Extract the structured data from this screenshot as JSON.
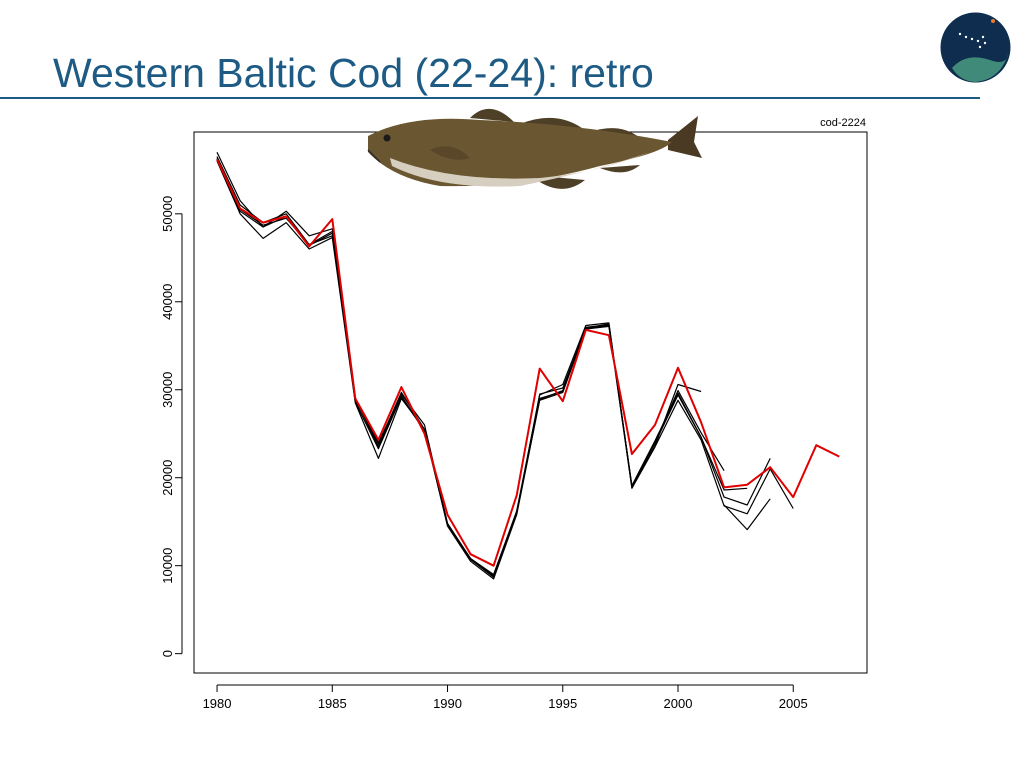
{
  "slide": {
    "title": "Western Baltic Cod (22-24): retro"
  },
  "chart_data": {
    "type": "line",
    "tag": "cod-2224",
    "title": "",
    "xlabel": "",
    "ylabel": "",
    "xlim": [
      1979,
      2008.2
    ],
    "ylim": [
      -2200,
      59300
    ],
    "x_ticks": [
      1980,
      1985,
      1990,
      1995,
      2000,
      2005
    ],
    "y_ticks": [
      0,
      10000,
      20000,
      30000,
      40000,
      50000
    ],
    "grid": false,
    "legend": "none",
    "series": [
      {
        "color": "#000000",
        "x": [
          1980,
          1981,
          1982,
          1983,
          1984,
          1985,
          1986,
          1987,
          1988,
          1989,
          1990,
          1991,
          1992,
          1993,
          1994,
          1995,
          1996,
          1997,
          1998,
          1999,
          2000,
          2001
        ],
        "y": [
          57000,
          51500,
          48500,
          50300,
          47500,
          48300,
          29000,
          23500,
          29500,
          26000,
          14800,
          10700,
          8700,
          16200,
          29400,
          30600,
          37300,
          37600,
          18900,
          23600,
          30600,
          29800
        ]
      },
      {
        "color": "#000000",
        "x": [
          1980,
          1981,
          1982,
          1983,
          1984,
          1985,
          1986,
          1987,
          1988,
          1989,
          1990,
          1991,
          1992,
          1993,
          1994,
          1995,
          1996,
          1997,
          1998,
          1999,
          2000,
          2001,
          2002
        ],
        "y": [
          56500,
          51000,
          49000,
          50000,
          46500,
          48000,
          29000,
          23800,
          29700,
          25500,
          14800,
          10800,
          8900,
          16000,
          29500,
          30200,
          37000,
          37500,
          19000,
          24000,
          29900,
          25100,
          20800
        ]
      },
      {
        "color": "#000000",
        "x": [
          1980,
          1981,
          1982,
          1983,
          1984,
          1985,
          1986,
          1987,
          1988,
          1989,
          1990,
          1991,
          1992,
          1993,
          1994,
          1995,
          1996,
          1997,
          1998,
          1999,
          2000,
          2001,
          2002,
          2003
        ],
        "y": [
          56300,
          50500,
          48700,
          49500,
          46500,
          47500,
          28800,
          24000,
          29300,
          25400,
          14600,
          10800,
          9000,
          16200,
          29000,
          29800,
          37100,
          37400,
          19100,
          24200,
          29600,
          24600,
          18600,
          18800
        ]
      },
      {
        "color": "#000000",
        "x": [
          1980,
          1981,
          1982,
          1983,
          1984,
          1985,
          1986,
          1987,
          1988,
          1989,
          1990,
          1991,
          1992,
          1993,
          1994,
          1995,
          1996,
          1997,
          1998,
          1999,
          2000,
          2001,
          2002,
          2003,
          2004
        ],
        "y": [
          56200,
          50300,
          48500,
          49700,
          46400,
          47800,
          28600,
          23300,
          29200,
          25300,
          14700,
          10700,
          8800,
          16000,
          28900,
          29900,
          37000,
          37300,
          19000,
          23900,
          29400,
          24600,
          17800,
          16900,
          22200
        ]
      },
      {
        "color": "#000000",
        "x": [
          1980,
          1981,
          1982,
          1983,
          1984,
          1985,
          1986,
          1987,
          1988,
          1989,
          1990,
          1991,
          1992,
          1993,
          1994,
          1995,
          1996,
          1997,
          1998,
          1999,
          2000,
          2001,
          2002,
          2003,
          2004,
          2005
        ],
        "y": [
          56000,
          50000,
          47200,
          49000,
          46000,
          47300,
          28500,
          22200,
          29000,
          25500,
          14500,
          10500,
          8500,
          15800,
          28800,
          29700,
          36900,
          37200,
          18800,
          23500,
          28800,
          24300,
          16800,
          15900,
          21000,
          16500
        ]
      },
      {
        "color": "#000000",
        "x": [
          2002,
          2003,
          2004
        ],
        "y": [
          16900,
          14100,
          17600
        ]
      },
      {
        "color": "#e00000",
        "x": [
          1980,
          1981,
          1982,
          1983,
          1984,
          1985,
          1986,
          1987,
          1988,
          1989,
          1990,
          1991,
          1992,
          1993,
          1994,
          1995,
          1996,
          1997,
          1998,
          1999,
          2000,
          2001,
          2002,
          2003,
          2004,
          2005,
          2006,
          2007
        ],
        "y": [
          56200,
          50600,
          49000,
          49700,
          46300,
          49400,
          29000,
          24300,
          30300,
          25000,
          15800,
          11300,
          10000,
          18000,
          32400,
          28700,
          36800,
          36200,
          22700,
          26000,
          32500,
          26300,
          18900,
          19200,
          21200,
          17800,
          23700,
          22400
        ]
      }
    ]
  }
}
